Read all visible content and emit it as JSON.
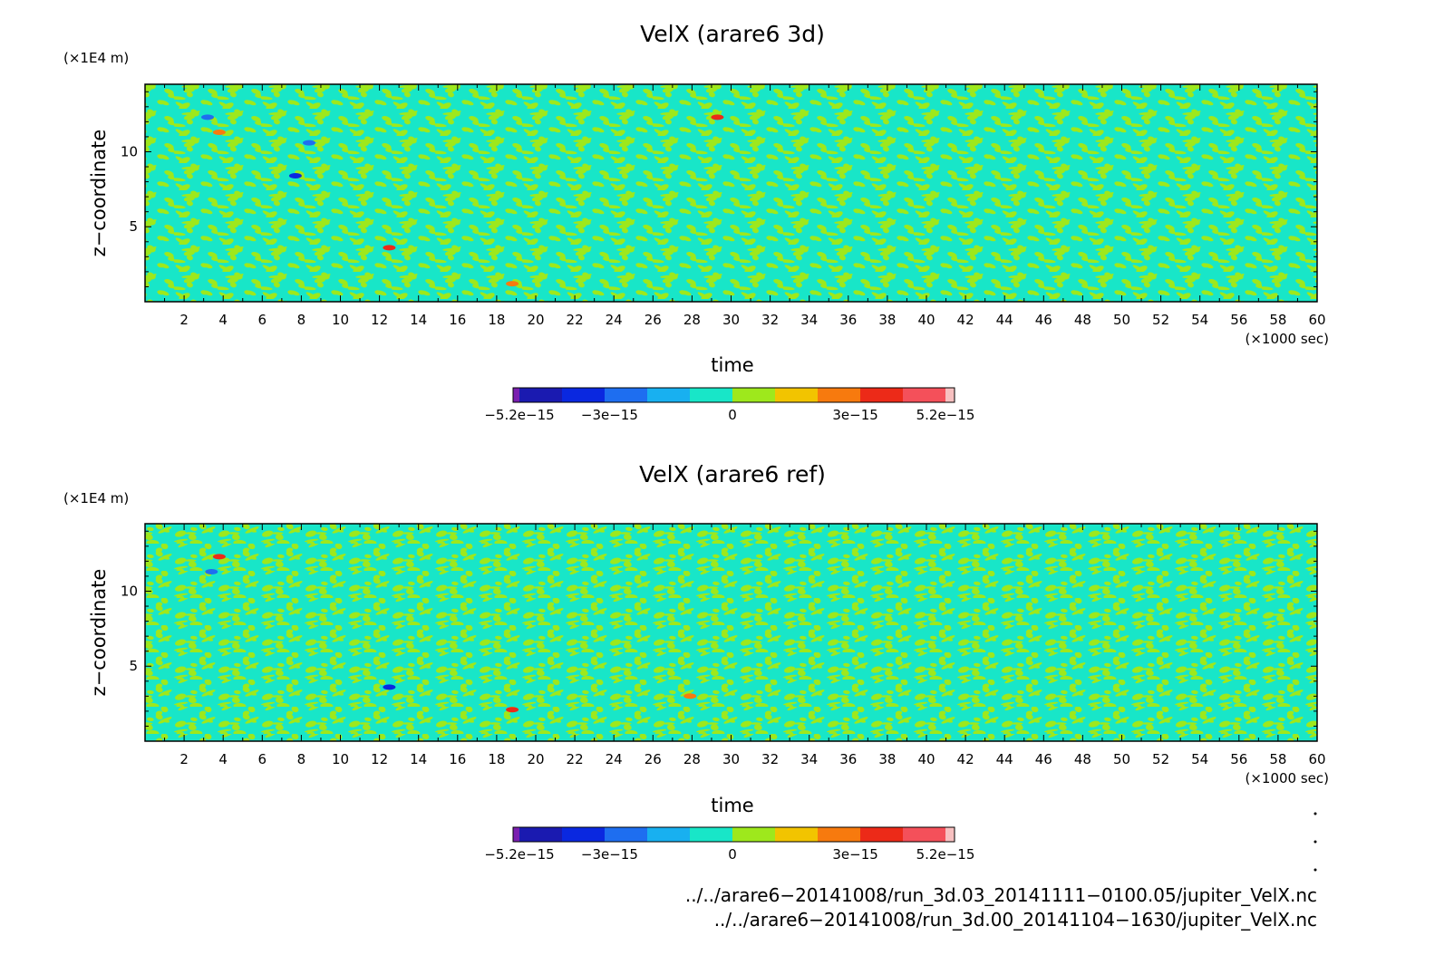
{
  "chart_data": [
    {
      "type": "heatmap",
      "title": "VelX (arare6 3d)",
      "xlabel": "time",
      "ylabel": "z−coordinate",
      "x_unit": "(×1000 sec)",
      "y_unit": "(×1E4 m)",
      "xlim": [
        0,
        60
      ],
      "ylim": [
        0,
        14.5
      ],
      "xticks": [
        2,
        4,
        6,
        8,
        10,
        12,
        14,
        16,
        18,
        20,
        22,
        24,
        26,
        28,
        30,
        32,
        34,
        36,
        38,
        40,
        42,
        44,
        46,
        48,
        50,
        52,
        54,
        56,
        58,
        60
      ],
      "yticks": [
        5,
        10
      ],
      "value_range": [
        -5.2e-15,
        5.2e-15
      ],
      "anomalies": [
        {
          "x": 3.8,
          "z": 11.3,
          "v": 2.5e-15
        },
        {
          "x": 7.7,
          "z": 8.4,
          "v": -3.2e-15
        },
        {
          "x": 12.5,
          "z": 3.6,
          "v": 2.8e-15
        },
        {
          "x": 18.8,
          "z": 1.2,
          "v": 2.2e-15
        },
        {
          "x": 29.3,
          "z": 12.3,
          "v": 2.6e-15
        },
        {
          "x": 3.2,
          "z": 12.3,
          "v": -2.6e-15
        },
        {
          "x": 8.4,
          "z": 10.6,
          "v": -2.4e-15
        }
      ]
    },
    {
      "type": "heatmap",
      "title": "VelX (arare6 ref)",
      "xlabel": "time",
      "ylabel": "z−coordinate",
      "x_unit": "(×1000 sec)",
      "y_unit": "(×1E4 m)",
      "xlim": [
        0,
        60
      ],
      "ylim": [
        0,
        14.5
      ],
      "xticks": [
        2,
        4,
        6,
        8,
        10,
        12,
        14,
        16,
        18,
        20,
        22,
        24,
        26,
        28,
        30,
        32,
        34,
        36,
        38,
        40,
        42,
        44,
        46,
        48,
        50,
        52,
        54,
        56,
        58,
        60
      ],
      "yticks": [
        5,
        10
      ],
      "value_range": [
        -5.2e-15,
        5.2e-15
      ],
      "anomalies": [
        {
          "x": 3.8,
          "z": 12.3,
          "v": 3e-15
        },
        {
          "x": 12.5,
          "z": 3.6,
          "v": -3e-15
        },
        {
          "x": 18.8,
          "z": 2.1,
          "v": 2.6e-15
        },
        {
          "x": 3.4,
          "z": 11.3,
          "v": -2.2e-15
        },
        {
          "x": 27.9,
          "z": 3.0,
          "v": 2e-15
        }
      ]
    }
  ],
  "colorbar": {
    "colors": [
      "#7a1fb0",
      "#1a1ab0",
      "#0a28e0",
      "#1e6ef0",
      "#18b0f0",
      "#18e6c8",
      "#9ee81c",
      "#f2c400",
      "#f77a0e",
      "#ec2a18",
      "#f4505a",
      "#f7c0c0"
    ],
    "tick_values": [
      -5.2e-15,
      -3e-15,
      0,
      3e-15,
      5.2e-15
    ],
    "tick_labels": [
      "−5.2e−15",
      "−3e−15",
      "0",
      "3e−15",
      "5.2e−15"
    ]
  },
  "footer": {
    "file1": "../../arare6−20141008/run_3d.03_20141111−0100.05/jupiter_VelX.nc",
    "file2": "../../arare6−20141008/run_3d.00_20141104−1630/jupiter_VelX.nc"
  }
}
